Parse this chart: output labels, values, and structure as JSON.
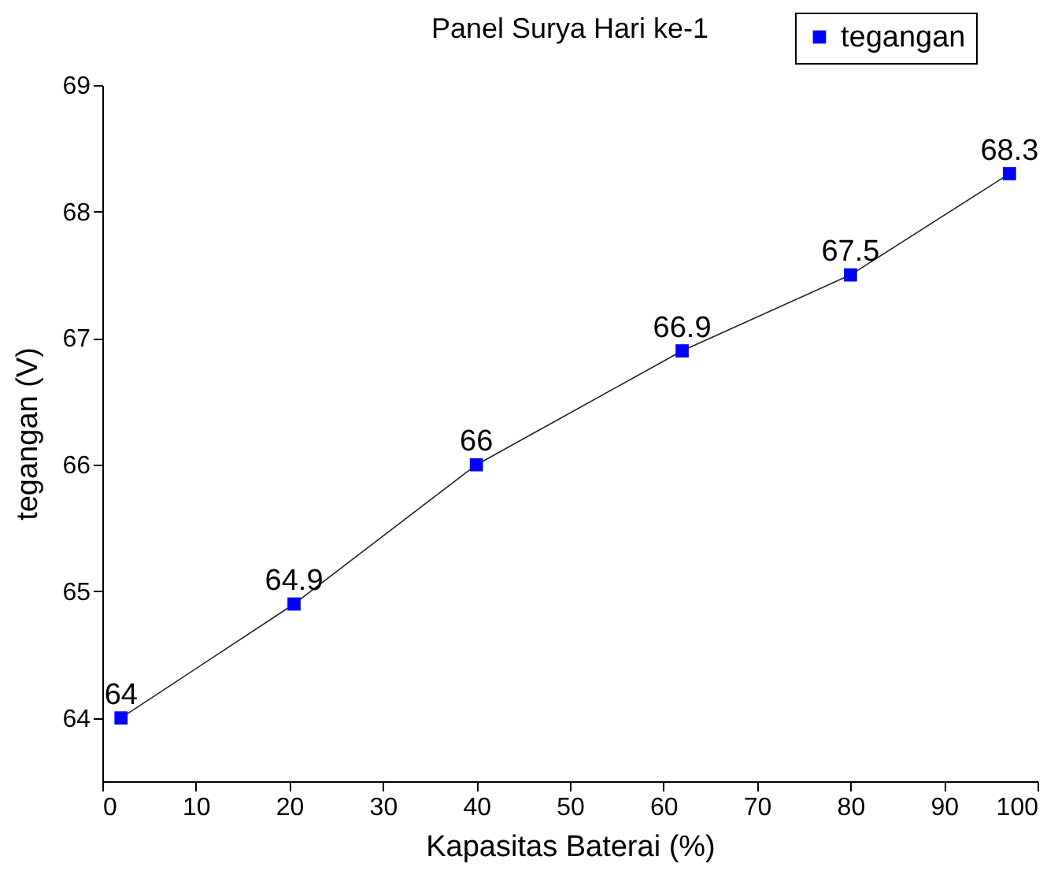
{
  "chart_data": {
    "type": "line",
    "title": "Panel Surya Hari ke-1",
    "xlabel": "Kapasitas Baterai (%)",
    "ylabel": "tegangan (V)",
    "x": [
      2,
      20.5,
      40,
      62,
      80,
      97
    ],
    "series": [
      {
        "name": "tegangan",
        "color": "#0000ff",
        "values": [
          64,
          64.9,
          66,
          66.9,
          67.5,
          68.3
        ]
      }
    ],
    "xlim": [
      0,
      100
    ],
    "xticks": [
      0,
      10,
      20,
      30,
      40,
      50,
      60,
      70,
      80,
      90,
      100
    ],
    "ylim": [
      63.5,
      69
    ],
    "yticks": [
      64,
      65,
      66,
      67,
      68,
      69
    ],
    "marker": "square",
    "line_style": "solid",
    "legend": "top right",
    "data_labels": true,
    "grid": false
  }
}
